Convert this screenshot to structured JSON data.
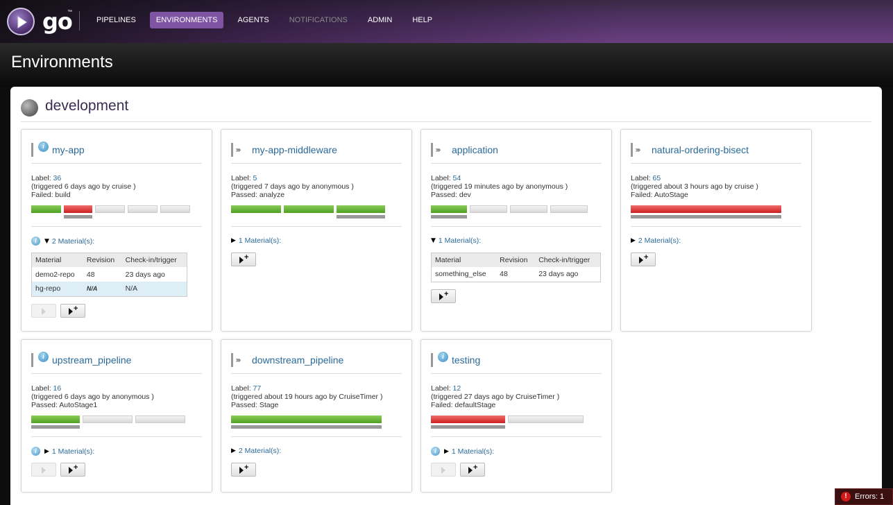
{
  "app": {
    "logo": "go",
    "tm": "™"
  },
  "nav": {
    "items": [
      {
        "label": "PIPELINES",
        "state": "normal"
      },
      {
        "label": "ENVIRONMENTS",
        "state": "active"
      },
      {
        "label": "AGENTS",
        "state": "normal"
      },
      {
        "label": "NOTIFICATIONS",
        "state": "disabled"
      },
      {
        "label": "ADMIN",
        "state": "normal"
      },
      {
        "label": "HELP",
        "state": "normal"
      }
    ]
  },
  "page": {
    "title": "Environments"
  },
  "environment": {
    "name": "development"
  },
  "colors": {
    "passed": "#4ea123",
    "failed": "#cc1f1f",
    "unknown": "#d8d8d8",
    "link": "#2a6a9a",
    "nav_active": "#7f55a3"
  },
  "pipelines": [
    {
      "name": "my-app",
      "has_info": true,
      "label_prefix": "Label:",
      "label": "36",
      "triggered": "(triggered 6 days ago by cruise )",
      "status": "Failed: build",
      "materials": "2 Material(s):",
      "materials_expanded": true,
      "materials_info": true,
      "material_headers": [
        "Material",
        "Revision",
        "Check-in/trigger"
      ],
      "material_rows": [
        {
          "material": "demo2-repo",
          "revision": "48",
          "checkin": "23 days ago",
          "highlight": false
        },
        {
          "material": "hg-repo",
          "revision": "N/A",
          "checkin": "N/A",
          "highlight": true
        }
      ],
      "play_enabled": false
    },
    {
      "name": "my-app-middleware",
      "has_info": false,
      "label_prefix": "Label:",
      "label": "5",
      "triggered": "(triggered 7 days ago by anonymous )",
      "status": "Passed: analyze",
      "materials": "1 Material(s):",
      "materials_expanded": false,
      "materials_info": false
    },
    {
      "name": "application",
      "has_info": false,
      "label_prefix": "Label:",
      "label": "54",
      "triggered": "(triggered 19 minutes ago by anonymous )",
      "status": "Passed: dev",
      "materials": "1 Material(s):",
      "materials_expanded": true,
      "materials_info": false,
      "material_headers": [
        "Material",
        "Revision",
        "Check-in/trigger"
      ],
      "material_rows": [
        {
          "material": "something_else",
          "revision": "48",
          "checkin": "23 days ago",
          "highlight": false
        }
      ]
    },
    {
      "name": "natural-ordering-bisect",
      "has_info": false,
      "label_prefix": "Label:",
      "label": "65",
      "triggered": "(triggered about 3 hours ago by cruise )",
      "status": "Failed: AutoStage",
      "materials": "2 Material(s):",
      "materials_expanded": false,
      "materials_info": false
    },
    {
      "name": "upstream_pipeline",
      "has_info": true,
      "label_prefix": "Label:",
      "label": "16",
      "triggered": "(triggered 6 days ago by anonymous )",
      "status": "Passed: AutoStage1",
      "materials": "1 Material(s):",
      "materials_expanded": false,
      "materials_info": true
    },
    {
      "name": "downstream_pipeline",
      "has_info": false,
      "label_prefix": "Label:",
      "label": "77",
      "triggered": "(triggered about 19 hours ago by CruiseTimer )",
      "status": "Passed: Stage",
      "materials": "2 Material(s):",
      "materials_expanded": false,
      "materials_info": false
    },
    {
      "name": "testing",
      "has_info": true,
      "label_prefix": "Label:",
      "label": "12",
      "triggered": "(triggered 27 days ago by CruiseTimer )",
      "status": "Failed: defaultStage",
      "materials": "1 Material(s):",
      "materials_expanded": false,
      "materials_info": true
    }
  ],
  "status_bar": {
    "errors": "Errors: 1"
  }
}
